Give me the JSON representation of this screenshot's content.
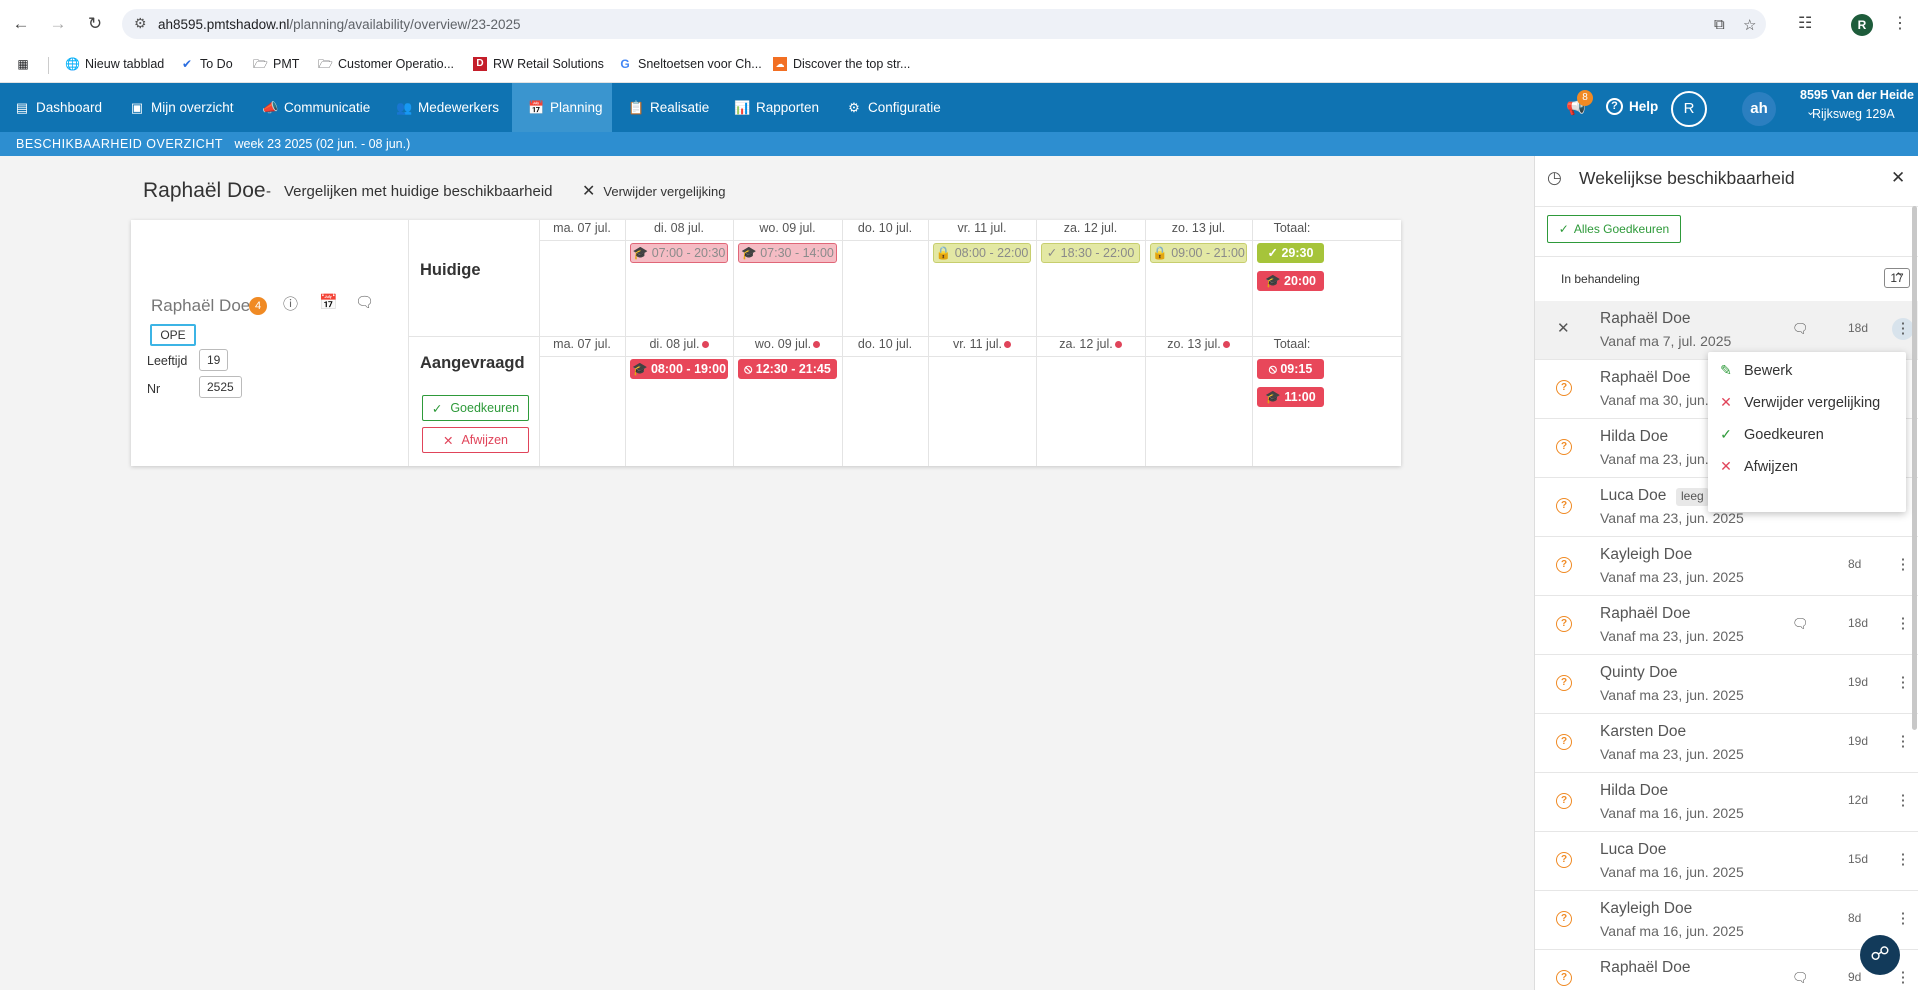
{
  "browser": {
    "url_host": "ah8595.pmtshadow.nl",
    "url_path": "/planning/availability/overview/23-2025",
    "profile_initial": "R",
    "bookmarks": [
      {
        "label": "Nieuw tabblad",
        "icon": "globe-icon"
      },
      {
        "label": "To Do",
        "icon": "check-icon"
      },
      {
        "label": "PMT",
        "icon": "folder-icon"
      },
      {
        "label": "Customer Operatio...",
        "icon": "folder-icon"
      },
      {
        "label": "RW Retail Solutions",
        "icon": "rw-logo-icon"
      },
      {
        "label": "Sneltoetsen voor Ch...",
        "icon": "google-icon"
      },
      {
        "label": "Discover the top str...",
        "icon": "soundcloud-icon"
      }
    ]
  },
  "nav": {
    "items": [
      {
        "label": "Dashboard",
        "icon": "dashboard-icon"
      },
      {
        "label": "Mijn overzicht",
        "icon": "id-card-icon"
      },
      {
        "label": "Communicatie",
        "icon": "megaphone-icon"
      },
      {
        "label": "Medewerkers",
        "icon": "users-icon"
      },
      {
        "label": "Planning",
        "icon": "calendar-icon"
      },
      {
        "label": "Realisatie",
        "icon": "clipboard-icon"
      },
      {
        "label": "Rapporten",
        "icon": "bar-chart-icon"
      },
      {
        "label": "Configuratie",
        "icon": "gears-icon"
      }
    ],
    "notification_count": "8",
    "help_label": "Help",
    "user_initial": "R",
    "logo_text": "ah",
    "store_name": "8595 Van der Heide",
    "store_address": "Rijksweg 129A"
  },
  "subbar": {
    "title": "BESCHIKBAARHEID OVERZICHT",
    "week": "week 23 2025 (02 jun. - 08 jun.)"
  },
  "main": {
    "employee_heading": "Raphaël Doe",
    "separator": "-",
    "compare_text": "Vergelijken met huidige beschikbaarheid",
    "remove_compare": "Verwijder vergelijking",
    "employee": {
      "name": "Raphaël Doe",
      "badge": "4",
      "role": "OPE",
      "age_label": "Leeftijd",
      "age": "19",
      "nr_label": "Nr",
      "nr": "2525"
    },
    "current": {
      "label": "Huidige",
      "days": [
        "ma. 07 jul.",
        "di. 08 jul.",
        "wo. 09 jul.",
        "do. 10 jul.",
        "vr. 11 jul.",
        "za. 12 jul.",
        "zo. 13 jul."
      ],
      "total_label": "Totaal:",
      "shifts": [
        {
          "day": 1,
          "text": "07:00 - 20:30",
          "kind": "pale-red",
          "icon": "school-icon"
        },
        {
          "day": 2,
          "text": "07:30 - 14:00",
          "kind": "pale-red",
          "icon": "school-icon"
        },
        {
          "day": 4,
          "text": "08:00 - 22:00",
          "kind": "pale-olive",
          "icon": "lock-icon"
        },
        {
          "day": 5,
          "text": "18:30 - 22:00",
          "kind": "pale-olive",
          "icon": "check-icon"
        },
        {
          "day": 6,
          "text": "09:00 - 21:00",
          "kind": "pale-olive",
          "icon": "lock-icon"
        }
      ],
      "totals": [
        {
          "text": "29:30",
          "kind": "green",
          "icon": "check-icon"
        },
        {
          "text": "20:00",
          "kind": "red",
          "icon": "school-icon"
        }
      ]
    },
    "requested": {
      "label": "Aangevraagd",
      "days": [
        "ma. 07 jul.",
        "di. 08 jul.",
        "wo. 09 jul.",
        "do. 10 jul.",
        "vr. 11 jul.",
        "za. 12 jul.",
        "zo. 13 jul."
      ],
      "changed": [
        false,
        true,
        true,
        false,
        true,
        true,
        true
      ],
      "total_label": "Totaal:",
      "shifts": [
        {
          "day": 1,
          "text": "08:00 - 19:00",
          "kind": "red",
          "icon": "school-icon"
        },
        {
          "day": 2,
          "text": "12:30 - 21:45",
          "kind": "red",
          "icon": "ban-icon"
        }
      ],
      "totals": [
        {
          "text": "09:15",
          "kind": "red",
          "icon": "ban-icon"
        },
        {
          "text": "11:00",
          "kind": "red",
          "icon": "school-icon"
        }
      ],
      "approve_label": "Goedkeuren",
      "reject_label": "Afwijzen"
    }
  },
  "panel": {
    "title": "Wekelijkse beschikbaarheid",
    "approve_all": "Alles Goedkeuren",
    "pending_label": "In behandeling",
    "pending_count": "17",
    "requests": [
      {
        "name": "Raphaël Doe",
        "date": "Vanaf ma 7, jul. 2025",
        "days": "18d",
        "message": true,
        "selected": true
      },
      {
        "name": "Raphaël Doe",
        "date": "Vanaf ma 30, jun. 2025",
        "days": "",
        "message": false
      },
      {
        "name": "Hilda Doe",
        "date": "Vanaf ma 23, jun. 2025",
        "days": "",
        "message": false
      },
      {
        "name": "Luca Doe",
        "date": "Vanaf ma 23, jun. 2025",
        "days": "",
        "message": false,
        "chip": "leeg"
      },
      {
        "name": "Kayleigh Doe",
        "date": "Vanaf ma 23, jun. 2025",
        "days": "8d",
        "message": false
      },
      {
        "name": "Raphaël Doe",
        "date": "Vanaf ma 23, jun. 2025",
        "days": "18d",
        "message": true
      },
      {
        "name": "Quinty Doe",
        "date": "Vanaf ma 23, jun. 2025",
        "days": "19d",
        "message": false
      },
      {
        "name": "Karsten Doe",
        "date": "Vanaf ma 23, jun. 2025",
        "days": "19d",
        "message": false
      },
      {
        "name": "Hilda Doe",
        "date": "Vanaf ma 16, jun. 2025",
        "days": "12d",
        "message": false
      },
      {
        "name": "Luca Doe",
        "date": "Vanaf ma 16, jun. 2025",
        "days": "15d",
        "message": false
      },
      {
        "name": "Kayleigh Doe",
        "date": "Vanaf ma 16, jun. 2025",
        "days": "8d",
        "message": false
      },
      {
        "name": "Raphaël Doe",
        "date": "",
        "days": "9d",
        "message": true
      }
    ],
    "menu": [
      {
        "label": "Bewerk",
        "icon": "pencil-icon",
        "color": "#2e9a3a"
      },
      {
        "label": "Verwijder vergelijking",
        "icon": "close-icon",
        "color": "#e0445a"
      },
      {
        "label": "Goedkeuren",
        "icon": "check-icon",
        "color": "#2e9a3a"
      },
      {
        "label": "Afwijzen",
        "icon": "close-icon",
        "color": "#e0445a"
      }
    ]
  }
}
